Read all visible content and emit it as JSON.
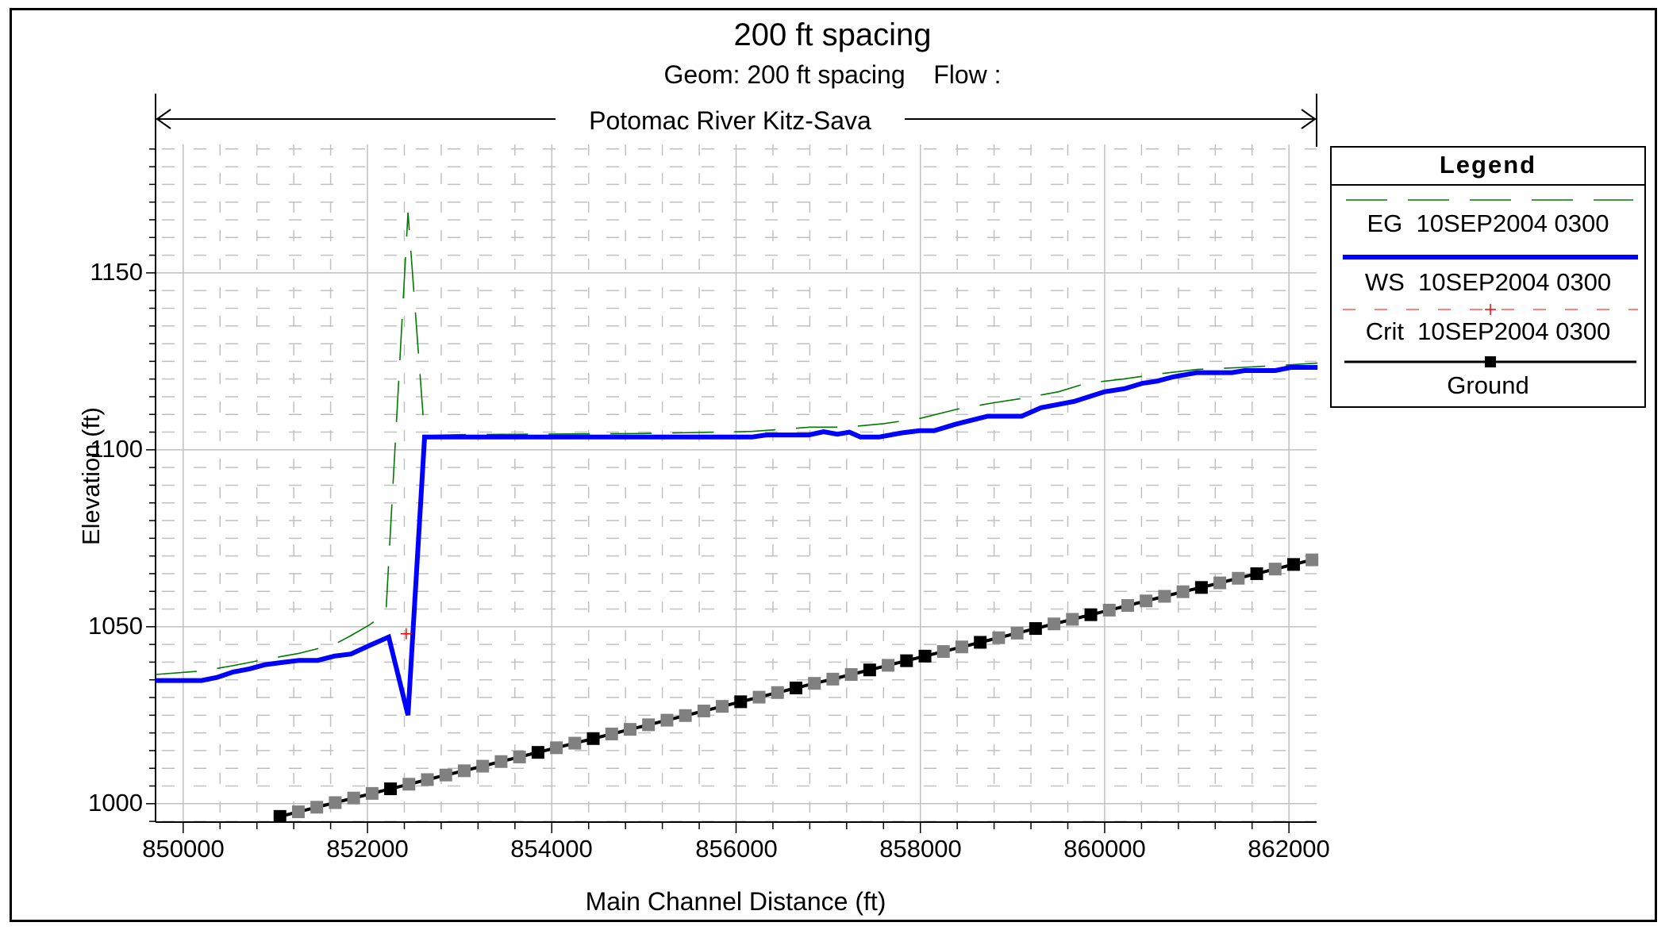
{
  "header": {
    "title": "200 ft spacing",
    "subtitle": "Geom: 200 ft spacing    Flow :",
    "reach_label": "Potomac River Kitz-Sava"
  },
  "legend": {
    "title": "Legend",
    "items": [
      {
        "label": "EG  10SEP2004 0300",
        "color": "#007a00",
        "style": "dashed"
      },
      {
        "label": "WS  10SEP2004 0300",
        "color": "#0000ff",
        "style": "solid-thick"
      },
      {
        "label": "Crit  10SEP2004 0300",
        "color": "#ff0000",
        "style": "dashed-plus"
      },
      {
        "label": "Ground",
        "color": "#000000",
        "style": "solid-square"
      }
    ]
  },
  "axes": {
    "xlabel": "Main Channel Distance (ft)",
    "ylabel": "Elevation (ft)",
    "xticks": [
      "850000",
      "852000",
      "854000",
      "856000",
      "858000",
      "860000",
      "862000"
    ],
    "yticks": [
      "1000",
      "1050",
      "1100",
      "1150"
    ]
  },
  "chart_data": {
    "type": "line",
    "title": "200 ft spacing",
    "subtitle": "Geom: 200 ft spacing    Flow :",
    "annotation": "Potomac River Kitz-Sava",
    "xlabel": "Main Channel Distance (ft)",
    "ylabel": "Elevation (ft)",
    "xlim": [
      849700,
      862300
    ],
    "ylim": [
      994.8,
      1186.3
    ],
    "xticks": [
      850000,
      852000,
      854000,
      856000,
      858000,
      860000,
      862000
    ],
    "yticks": [
      1000,
      1050,
      1100,
      1150
    ],
    "grid": true,
    "legend_position": "right",
    "series": [
      {
        "name": "EG 10SEP2004 0300",
        "color": "#007a00",
        "style": "dashed",
        "x": [
          849700,
          850200,
          850540,
          850890,
          851260,
          851640,
          851820,
          852020,
          852200,
          852440,
          852620,
          853000,
          855000,
          856170,
          856500,
          856800,
          857200,
          857600,
          858000,
          858400,
          858800,
          859100,
          859500,
          859800,
          860200,
          860600,
          861000,
          861500,
          862000,
          862310
        ],
        "y": [
          1036.5,
          1037.5,
          1039.0,
          1040.8,
          1042.5,
          1045.0,
          1047.5,
          1050.5,
          1054.0,
          1167.0,
          1104.0,
          1104.3,
          1104.6,
          1105.2,
          1105.8,
          1106.4,
          1106.4,
          1107.4,
          1108.9,
          1111.5,
          1113.3,
          1114.5,
          1116.4,
          1118.8,
          1120.0,
          1121.5,
          1122.7,
          1123.3,
          1124.0,
          1124.5
        ]
      },
      {
        "name": "WS 10SEP2004 0300",
        "color": "#0000ff",
        "style": "solid",
        "x": [
          849700,
          850200,
          850370,
          850540,
          850720,
          850890,
          851070,
          851260,
          851460,
          851640,
          851820,
          852020,
          852230,
          852440,
          852620,
          856170,
          856330,
          856790,
          856950,
          857100,
          857230,
          857350,
          857550,
          857800,
          857990,
          858150,
          858380,
          858730,
          859100,
          859310,
          859670,
          860000,
          860220,
          860410,
          860570,
          860740,
          861000,
          861380,
          861520,
          861850,
          862020,
          862310
        ],
        "y": [
          1034.8,
          1034.8,
          1035.7,
          1037.2,
          1038.1,
          1039.3,
          1039.9,
          1040.5,
          1040.5,
          1041.7,
          1042.3,
          1044.7,
          1047.1,
          1025.0,
          1103.6,
          1103.6,
          1104.2,
          1104.2,
          1105.1,
          1104.4,
          1105.0,
          1103.6,
          1103.6,
          1104.8,
          1105.4,
          1105.4,
          1107.2,
          1109.5,
          1109.5,
          1111.9,
          1113.7,
          1116.4,
          1117.3,
          1118.8,
          1119.4,
          1120.6,
          1121.8,
          1121.8,
          1122.4,
          1122.4,
          1123.3,
          1123.3
        ]
      },
      {
        "name": "Crit 10SEP2004 0300",
        "color": "#ff0000",
        "style": "plus-marker",
        "x": [
          852420
        ],
        "y": [
          1048.0
        ]
      },
      {
        "name": "Ground",
        "color": "#000000",
        "style": "solid-square",
        "x_start": 851050,
        "x_step": 200,
        "y": [
          996.4,
          997.7,
          999.0,
          1000.3,
          1001.6,
          1002.9,
          1004.2,
          1005.5,
          1006.8,
          1008.1,
          1009.3,
          1010.6,
          1011.9,
          1013.2,
          1014.5,
          1015.8,
          1017.1,
          1018.4,
          1019.7,
          1021.0,
          1022.3,
          1023.6,
          1024.9,
          1026.2,
          1027.5,
          1028.8,
          1030.1,
          1031.4,
          1032.7,
          1034.0,
          1035.2,
          1036.5,
          1037.8,
          1039.1,
          1040.4,
          1041.7,
          1043.0,
          1044.3,
          1045.6,
          1046.9,
          1048.2,
          1049.5,
          1050.8,
          1052.1,
          1053.4,
          1054.7,
          1056.0,
          1057.3,
          1058.6,
          1059.9,
          1061.1,
          1062.4,
          1063.7,
          1065.0,
          1066.3,
          1067.6,
          1068.9
        ],
        "black_marker_indices": [
          0,
          6,
          14,
          17,
          25,
          28,
          32,
          34,
          35,
          38,
          41,
          44,
          50,
          53,
          55
        ]
      }
    ]
  }
}
